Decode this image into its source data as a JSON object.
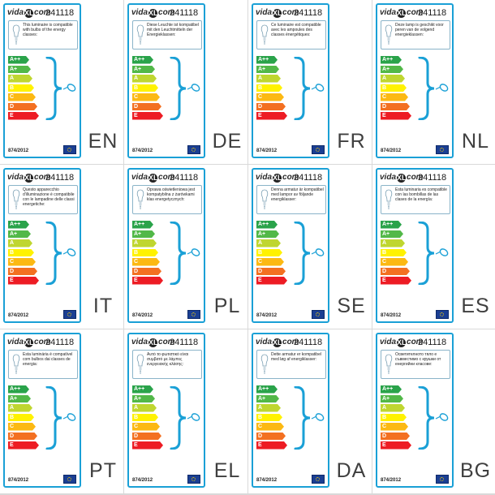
{
  "brand": {
    "logo_left": "vida",
    "logo_mark": "XL",
    "logo_right": "com"
  },
  "product_code": "241118",
  "regulation": "874/2012",
  "energy_classes": [
    {
      "label": "A++",
      "color": "#2aa34a"
    },
    {
      "label": "A+",
      "color": "#52b848"
    },
    {
      "label": "A",
      "color": "#bfd630"
    },
    {
      "label": "B",
      "color": "#fff200"
    },
    {
      "label": "C",
      "color": "#fcb913"
    },
    {
      "label": "D",
      "color": "#f37021"
    },
    {
      "label": "E",
      "color": "#ed1c24"
    }
  ],
  "accent_color": "#1aa0d6",
  "icons": {
    "bulb": "light-bulb-icon",
    "lamp": "lamp-icon",
    "brace": "brace-icon",
    "eu": "eu-flag-icon"
  },
  "labels": [
    {
      "lang": "EN",
      "desc": "This luminaire is compatible with bulbs of the energy classes:"
    },
    {
      "lang": "DE",
      "desc": "Diese Leuchte ist kompatibel mit den Leuchtmitteln der Energieklassen:"
    },
    {
      "lang": "FR",
      "desc": "Ce luminaire est compatible avec les ampoules des classes énergétiques:"
    },
    {
      "lang": "NL",
      "desc": "Deze lamp is geschikt voor peren van de volgend energieklassen:"
    },
    {
      "lang": "IT",
      "desc": "Questo apparecchio d'illuminazione è compatibile con le lampadine delle classi energetiche:"
    },
    {
      "lang": "PL",
      "desc": "Oprawa oświetleniowa jest kompatybilna z żarówkami klas energetycznych:"
    },
    {
      "lang": "SE",
      "desc": "Denna armatur är kompatibel med lampor av följande energiklasser:"
    },
    {
      "lang": "ES",
      "desc": "Esta luminaria es compatible con las bombillas de las clases de la energía:"
    },
    {
      "lang": "PT",
      "desc": "Esta luminária é compatível com bulbos dai classes de energia:"
    },
    {
      "lang": "EL",
      "desc": "Αυτό το φωτιστικό είναι συμβατό με λάμπες ενεργειακής κλάσης:"
    },
    {
      "lang": "DA",
      "desc": "Dette armatur er kompatibel med løg af energiklasser:"
    },
    {
      "lang": "BG",
      "desc": "Осветителното тяло е съвместимо с крушки от енергийни класове:"
    }
  ]
}
